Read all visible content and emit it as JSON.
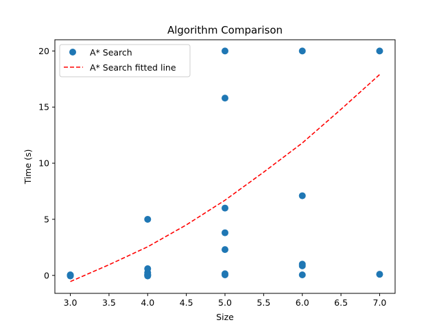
{
  "chart_data": {
    "type": "scatter",
    "title": "Algorithm Comparison",
    "xlabel": "Size",
    "ylabel": "Time (s)",
    "xlim": [
      2.8,
      7.2
    ],
    "ylim": [
      -1.6,
      21.0
    ],
    "xticks": [
      3.0,
      3.5,
      4.0,
      4.5,
      5.0,
      5.5,
      6.0,
      6.5,
      7.0
    ],
    "xtick_labels": [
      "3.0",
      "3.5",
      "4.0",
      "4.5",
      "5.0",
      "5.5",
      "6.0",
      "6.5",
      "7.0"
    ],
    "yticks": [
      0,
      5,
      10,
      15,
      20
    ],
    "ytick_labels": [
      "0",
      "5",
      "10",
      "15",
      "20"
    ],
    "grid": false,
    "legend_position": "top-left",
    "series": [
      {
        "name": "A* Search",
        "kind": "scatter",
        "color": "#1f77b4",
        "points": [
          [
            3,
            0.0
          ],
          [
            3,
            0.02
          ],
          [
            3,
            0.05
          ],
          [
            3,
            -0.05
          ],
          [
            3,
            0.01
          ],
          [
            4,
            5.0
          ],
          [
            4,
            0.6
          ],
          [
            4,
            0.25
          ],
          [
            4,
            0.1
          ],
          [
            4,
            0.0
          ],
          [
            4,
            -0.05
          ],
          [
            4,
            0.05
          ],
          [
            5,
            20.0
          ],
          [
            5,
            15.8
          ],
          [
            5,
            6.0
          ],
          [
            5,
            3.8
          ],
          [
            5,
            2.3
          ],
          [
            5,
            0.15
          ],
          [
            5,
            0.05
          ],
          [
            6,
            20.0
          ],
          [
            6,
            7.1
          ],
          [
            6,
            1.0
          ],
          [
            6,
            0.85
          ],
          [
            6,
            0.05
          ],
          [
            7,
            20.0
          ],
          [
            7,
            0.1
          ]
        ]
      },
      {
        "name": "A* Search fitted line",
        "kind": "line",
        "style": "dashed",
        "color": "#ff0000",
        "x": [
          3.0,
          3.5,
          4.0,
          4.5,
          5.0,
          5.5,
          6.0,
          6.5,
          7.0
        ],
        "y": [
          -0.55,
          0.95,
          2.55,
          4.5,
          6.7,
          9.2,
          11.8,
          14.8,
          17.9
        ]
      }
    ]
  }
}
